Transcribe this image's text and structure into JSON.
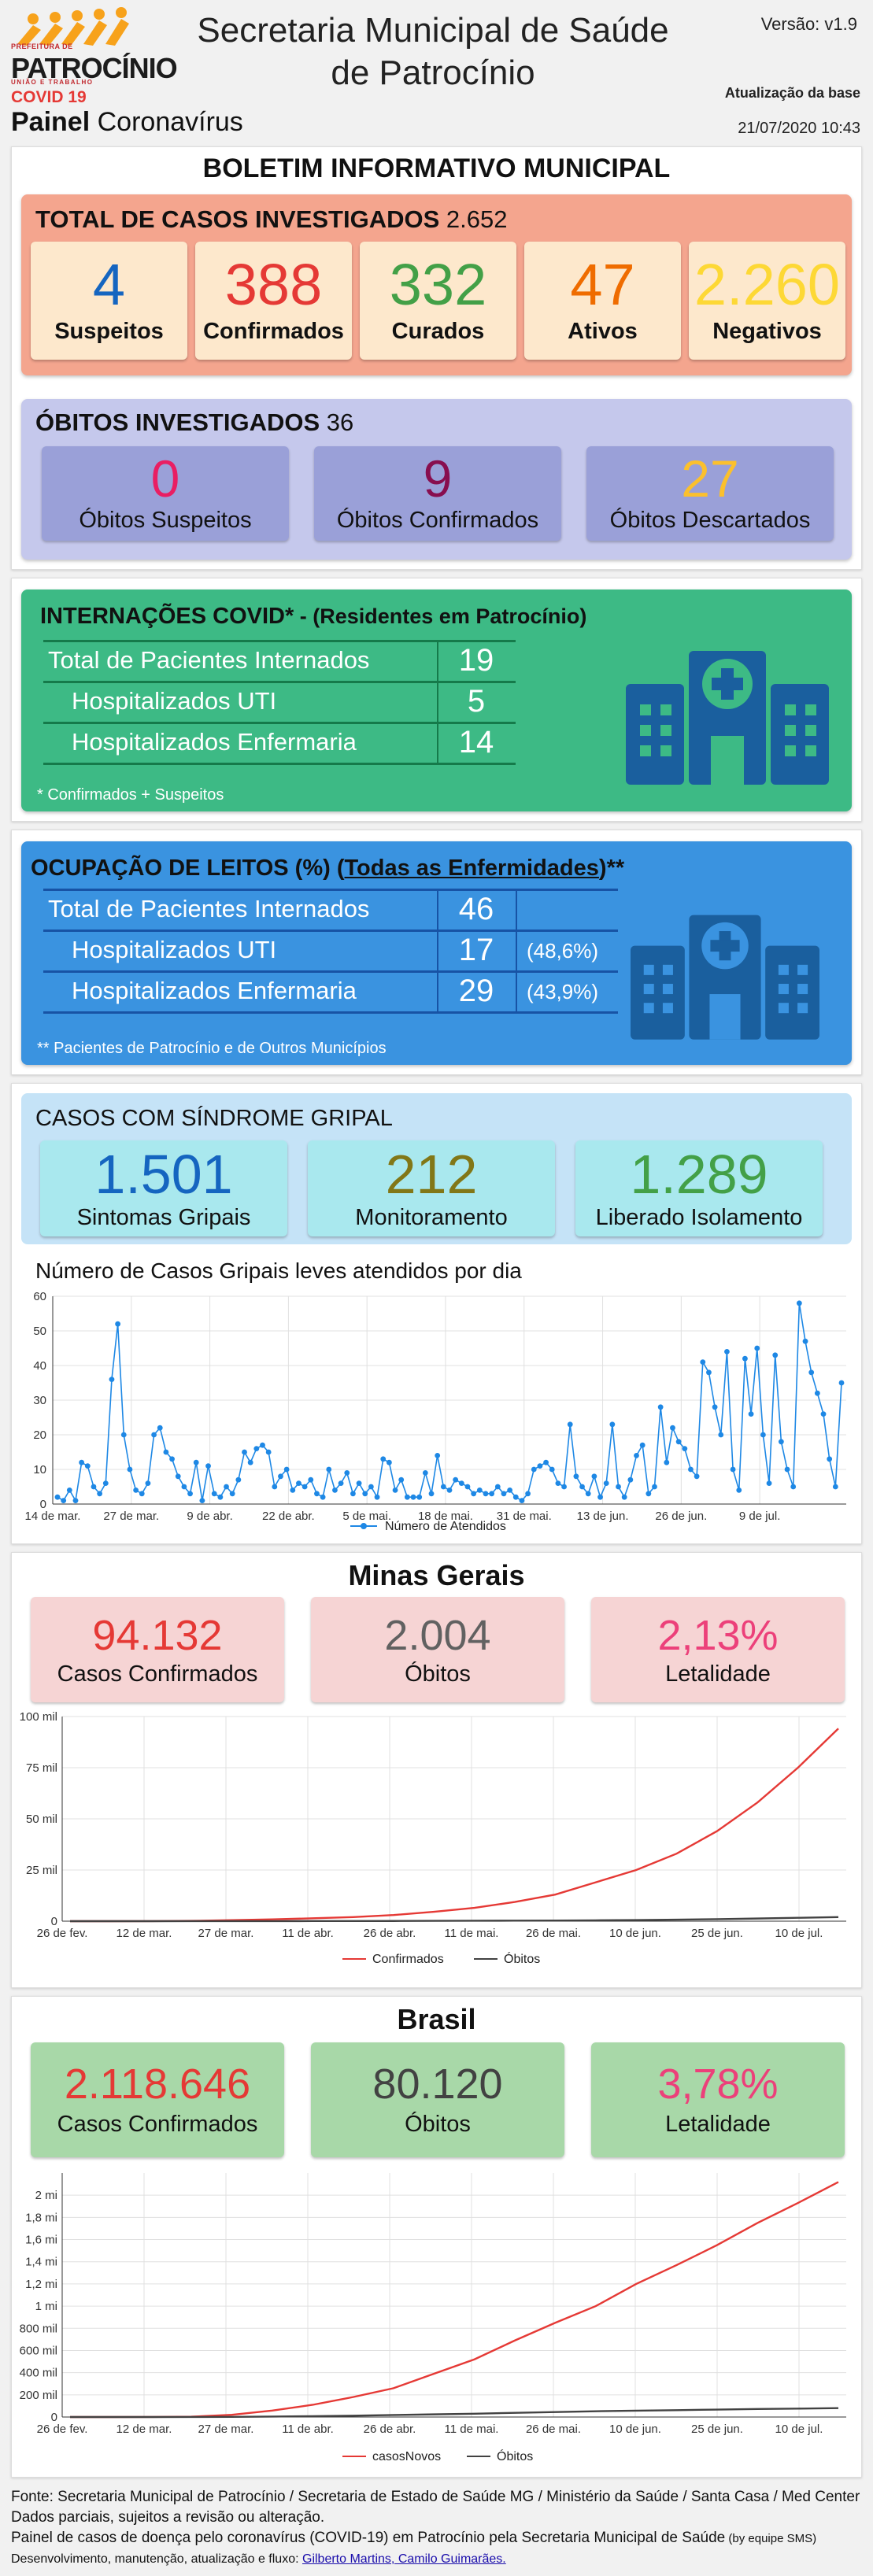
{
  "header": {
    "logo_line1": "PREFEITURA DE",
    "logo_line2": "PATROCÍNIO",
    "logo_line3": "UNIÃO E TRABALHO",
    "covid_label": "COVID 19",
    "painel_bold": "Painel",
    "painel_rest": " Coronavírus",
    "title_line1": "Secretaria Municipal de Saúde",
    "title_line2": "de Patrocínio",
    "version": "Versão: v1.9",
    "update_label": "Atualização da base",
    "update_date": "21/07/2020 10:43"
  },
  "bulletin": {
    "title": "BOLETIM INFORMATIVO MUNICIPAL",
    "cases_title": "TOTAL DE CASOS INVESTIGADOS",
    "cases_total": "2.652",
    "cases_cards": [
      {
        "value": "4",
        "label": "Suspeitos",
        "color": "#1565c0"
      },
      {
        "value": "388",
        "label": "Confirmados",
        "color": "#e53935"
      },
      {
        "value": "332",
        "label": "Curados",
        "color": "#43a047"
      },
      {
        "value": "47",
        "label": "Ativos",
        "color": "#ef6c00"
      },
      {
        "value": "2.260",
        "label": "Negativos",
        "color": "#fdd835"
      }
    ],
    "deaths_title": "ÓBITOS INVESTIGADOS",
    "deaths_total": "36",
    "deaths_cards": [
      {
        "value": "0",
        "label": "Óbitos Suspeitos",
        "color": "#e91e63"
      },
      {
        "value": "9",
        "label": "Óbitos Confirmados",
        "color": "#880e4f"
      },
      {
        "value": "27",
        "label": "Óbitos Descartados",
        "color": "#fbc02d"
      }
    ]
  },
  "internacoes": {
    "title_bold": "INTERNAÇÕES COVID*",
    "title_rest": " - (Residentes em Patrocínio)",
    "rows": [
      {
        "label": "Total de Pacientes Internados",
        "value": "19"
      },
      {
        "label": "Hospitalizados UTI",
        "value": "5"
      },
      {
        "label": "Hospitalizados Enfermaria",
        "value": "14"
      }
    ],
    "footnote": "* Confirmados + Suspeitos"
  },
  "ocupacao": {
    "title_a": "OCUPAÇÃO DE LEITOS (%) (",
    "title_u": "Todas as Enfermidades",
    "title_b": ")**",
    "rows": [
      {
        "label": "Total de Pacientes Internados",
        "value": "46",
        "pct": ""
      },
      {
        "label": "Hospitalizados UTI",
        "value": "17",
        "pct": "(48,6%)"
      },
      {
        "label": "Hospitalizados Enfermaria",
        "value": "29",
        "pct": "(43,9%)"
      }
    ],
    "footnote": "** Pacientes de Patrocínio e de Outros Municípios"
  },
  "sindrome": {
    "title": "CASOS COM SÍNDROME GRIPAL",
    "cards": [
      {
        "value": "1.501",
        "label": "Sintomas Gripais",
        "color": "#1565c0"
      },
      {
        "value": "212",
        "label": "Monitoramento",
        "color": "#827717"
      },
      {
        "value": "1.289",
        "label": "Liberado Isolamento",
        "color": "#43a047"
      }
    ],
    "chart_title": "Número de Casos Gripais leves atendidos por dia"
  },
  "minas": {
    "title": "Minas Gerais",
    "cards": [
      {
        "value": "94.132",
        "label": "Casos Confirmados",
        "color": "#e53935"
      },
      {
        "value": "2.004",
        "label": "Óbitos",
        "color": "#616161"
      },
      {
        "value": "2,13%",
        "label": "Letalidade",
        "color": "#ec407a"
      }
    ]
  },
  "brasil": {
    "title": "Brasil",
    "cards": [
      {
        "value": "2.118.646",
        "label": "Casos Confirmados",
        "color": "#e53935"
      },
      {
        "value": "80.120",
        "label": "Óbitos",
        "color": "#424242"
      },
      {
        "value": "3,78%",
        "label": "Letalidade",
        "color": "#ec407a"
      }
    ]
  },
  "footer": {
    "line1": "Fonte: Secretaria Municipal de Patrocínio / Secretaria de Estado de Saúde MG / Ministério da Saúde / Santa Casa / Med Center",
    "line2": "Dados parciais, sujeitos a revisão ou alteração.",
    "line3": "Painel de casos de doença pelo coronavírus (COVID-19) em Patrocínio pela Secretaria Municipal de Saúde",
    "line3_small": " (by equipe SMS)",
    "line4_prefix": "Desenvolvimento, manutenção, atualização e fluxo: ",
    "line4_link": "Gilberto Martins, Camilo Guimarães."
  },
  "chart_data": [
    {
      "type": "line",
      "title": "Número de Casos Gripais leves atendidos por dia",
      "legend": [
        "Número de Atendidos"
      ],
      "legend_position": "bottom",
      "color": "#1e88e5",
      "ylim": [
        0,
        60
      ],
      "yticks": [
        0,
        10,
        20,
        30,
        40,
        50,
        60
      ],
      "xtick_labels": [
        "14 de mar.",
        "27 de mar.",
        "9 de abr.",
        "22 de abr.",
        "5 de mai.",
        "18 de mai.",
        "31 de mai.",
        "13 de jun.",
        "26 de jun.",
        "9 de jul."
      ],
      "grid": true,
      "series": [
        {
          "name": "Número de Atendidos",
          "values": [
            2,
            1,
            4,
            1,
            12,
            11,
            5,
            3,
            6,
            36,
            52,
            20,
            10,
            4,
            3,
            6,
            20,
            22,
            15,
            13,
            8,
            5,
            3,
            12,
            1,
            11,
            3,
            2,
            5,
            3,
            7,
            15,
            12,
            16,
            17,
            15,
            5,
            8,
            10,
            4,
            6,
            5,
            7,
            3,
            2,
            10,
            4,
            6,
            9,
            3,
            6,
            3,
            5,
            2,
            13,
            12,
            4,
            7,
            2,
            2,
            2,
            9,
            3,
            14,
            5,
            4,
            7,
            6,
            5,
            3,
            4,
            3,
            3,
            5,
            3,
            4,
            2,
            1,
            3,
            10,
            11,
            12,
            10,
            6,
            5,
            23,
            8,
            5,
            3,
            8,
            2,
            6,
            23,
            5,
            2,
            7,
            14,
            17,
            3,
            5,
            28,
            12,
            22,
            18,
            16,
            10,
            8,
            41,
            38,
            28,
            20,
            44,
            10,
            4,
            42,
            26,
            45,
            20,
            6,
            43,
            18,
            10,
            5,
            58,
            47,
            38,
            32,
            26,
            13,
            5,
            35
          ]
        }
      ]
    },
    {
      "type": "line",
      "legend": [
        "Confirmados",
        "Óbitos"
      ],
      "legend_position": "bottom",
      "ylim": [
        0,
        100000
      ],
      "ytick_labels": [
        "0",
        "25 mil",
        "50 mil",
        "75 mil",
        "100 mil"
      ],
      "xtick_labels": [
        "26 de fev.",
        "12 de mar.",
        "27 de mar.",
        "11 de abr.",
        "26 de abr.",
        "11 de mai.",
        "26 de mai.",
        "10 de jun.",
        "25 de jun.",
        "10 de jul."
      ],
      "grid": true,
      "series": [
        {
          "name": "Confirmados",
          "color": "#e53935",
          "values": [
            0,
            1,
            20,
            150,
            500,
            900,
            1400,
            2000,
            3000,
            4600,
            6500,
            9400,
            13000,
            19000,
            25000,
            33000,
            44000,
            58000,
            75000,
            94132
          ]
        },
        {
          "name": "Óbitos",
          "color": "#424242",
          "values": [
            0,
            0,
            0,
            5,
            20,
            35,
            55,
            80,
            100,
            150,
            200,
            260,
            330,
            420,
            560,
            760,
            1000,
            1300,
            1650,
            2004
          ]
        }
      ]
    },
    {
      "type": "line",
      "legend": [
        "casosNovos",
        "Óbitos"
      ],
      "legend_position": "bottom",
      "ylim": [
        0,
        2200000
      ],
      "ytick_labels": [
        "0",
        "200 mil",
        "400 mil",
        "600 mil",
        "800 mil",
        "1 mi",
        "1,2 mi",
        "1,4 mi",
        "1,6 mi",
        "1,8 mi",
        "2 mi"
      ],
      "xtick_labels": [
        "26 de fev.",
        "12 de mar.",
        "27 de mar.",
        "11 de abr.",
        "26 de abr.",
        "11 de mai.",
        "26 de mai.",
        "10 de jun.",
        "25 de jun.",
        "10 de jul."
      ],
      "grid": true,
      "series": [
        {
          "name": "casosNovos",
          "color": "#e53935",
          "values": [
            0,
            50,
            500,
            3000,
            20000,
            58000,
            110000,
            180000,
            260000,
            390000,
            520000,
            690000,
            850000,
            1000000,
            1200000,
            1370000,
            1550000,
            1750000,
            1930000,
            2118646
          ]
        },
        {
          "name": "Óbitos",
          "color": "#424242",
          "values": [
            0,
            0,
            10,
            150,
            1200,
            4000,
            7500,
            12000,
            18000,
            24000,
            30000,
            38000,
            45000,
            52000,
            57000,
            62000,
            67000,
            72000,
            76000,
            80120
          ]
        }
      ]
    }
  ]
}
